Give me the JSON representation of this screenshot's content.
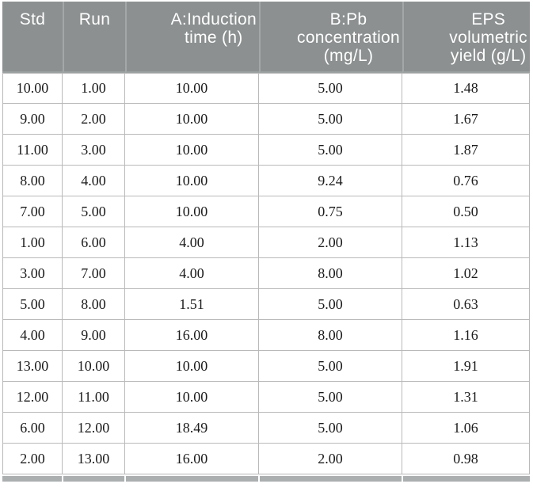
{
  "table": {
    "columns": [
      {
        "id": "std",
        "align": "center",
        "lines": [
          "Std"
        ]
      },
      {
        "id": "run",
        "align": "center",
        "lines": [
          "Run"
        ]
      },
      {
        "id": "induction-time",
        "align": "right",
        "lines": [
          "A:Induction",
          "time (h)"
        ]
      },
      {
        "id": "pb-concentration",
        "align": "right",
        "lines": [
          "B:Pb",
          "concentration",
          "(mg/L)"
        ]
      },
      {
        "id": "eps-yield",
        "align": "right",
        "lines": [
          "EPS",
          "volumetric",
          "yield (g/L)"
        ]
      }
    ],
    "rows": [
      [
        "10.00",
        "1.00",
        "10.00",
        "5.00",
        "1.48"
      ],
      [
        "9.00",
        "2.00",
        "10.00",
        "5.00",
        "1.67"
      ],
      [
        "11.00",
        "3.00",
        "10.00",
        "5.00",
        "1.87"
      ],
      [
        "8.00",
        "4.00",
        "10.00",
        "9.24",
        "0.76"
      ],
      [
        "7.00",
        "5.00",
        "10.00",
        "0.75",
        "0.50"
      ],
      [
        "1.00",
        "6.00",
        "4.00",
        "2.00",
        "1.13"
      ],
      [
        "3.00",
        "7.00",
        "4.00",
        "8.00",
        "1.02"
      ],
      [
        "5.00",
        "8.00",
        "1.51",
        "5.00",
        "0.63"
      ],
      [
        "4.00",
        "9.00",
        "16.00",
        "8.00",
        "1.16"
      ],
      [
        "13.00",
        "10.00",
        "10.00",
        "5.00",
        "1.91"
      ],
      [
        "12.00",
        "11.00",
        "10.00",
        "5.00",
        "1.31"
      ],
      [
        "6.00",
        "12.00",
        "18.49",
        "5.00",
        "1.06"
      ],
      [
        "2.00",
        "13.00",
        "16.00",
        "2.00",
        "0.98"
      ]
    ]
  },
  "colors": {
    "header_bg": "#8c9090",
    "header_text": "#ffffff",
    "header_divider": "#a3a7a7",
    "row_border": "#b9b9b9",
    "bottom_bar": "#abafaf",
    "body_text": "#1b1b1b",
    "page_bg": "#ffffff"
  }
}
